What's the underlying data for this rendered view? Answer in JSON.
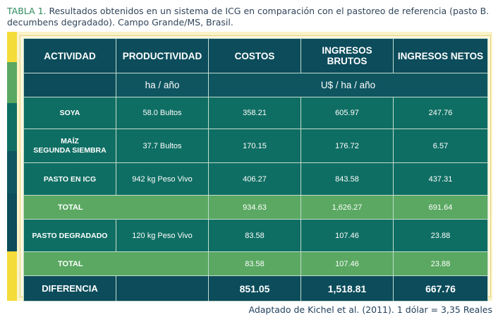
{
  "caption": {
    "label": "TABLA 1.",
    "text": " Resultados obtenidos en un sistema de ICG en comparación con el pastoreo de referencia (pasto B. decumbens degradado). Campo Grande/MS, Brasil."
  },
  "colors": {
    "header": "#0c4c5b",
    "body_row": "#0f6e63",
    "total_row": "#5aa862",
    "frame": "#faf3c8",
    "side_bar": [
      "#f4dc3a",
      "#5aa862",
      "#0f6e63",
      "#0e5560",
      "#0c4c5b",
      "#f4dc3a"
    ]
  },
  "table": {
    "headers": [
      "ACTIVIDAD",
      "PRODUCTIVIDAD",
      "COSTOS",
      "INGRESOS BRUTOS",
      "INGRESOS NETOS"
    ],
    "units": {
      "productividad": "ha / año",
      "money": "U$ / ha / año"
    },
    "rows": [
      {
        "actividad": "SOYA",
        "productividad": "58.0 Bultos",
        "costos": "358.21",
        "brutos": "605.97",
        "netos": "247.76"
      },
      {
        "actividad": "MAÍZ\nSEGUNDA SIEMBRA",
        "productividad": "37.7 Bultos",
        "costos": "170.15",
        "brutos": "176.72",
        "netos": "6.57"
      },
      {
        "actividad": "PASTO EN ICG",
        "productividad": "942 kg Peso Vivo",
        "costos": "406.27",
        "brutos": "843.58",
        "netos": "437.31"
      }
    ],
    "total1": {
      "label": "TOTAL",
      "costos": "934.63",
      "brutos": "1,626.27",
      "netos": "691.64"
    },
    "degradado": {
      "actividad": "PASTO DEGRADADO",
      "productividad": "120 kg Peso Vivo",
      "costos": "83.58",
      "brutos": "107.46",
      "netos": "23.88"
    },
    "total2": {
      "label": "TOTAL",
      "costos": "83.58",
      "brutos": "107.46",
      "netos": "23.88"
    },
    "diferencia": {
      "label": "DIFERENCIA",
      "costos": "851.05",
      "brutos": "1,518.81",
      "netos": "667.76"
    }
  },
  "source": "Adaptado de Kichel et al. (2011). 1 dólar = 3,35 Reales"
}
